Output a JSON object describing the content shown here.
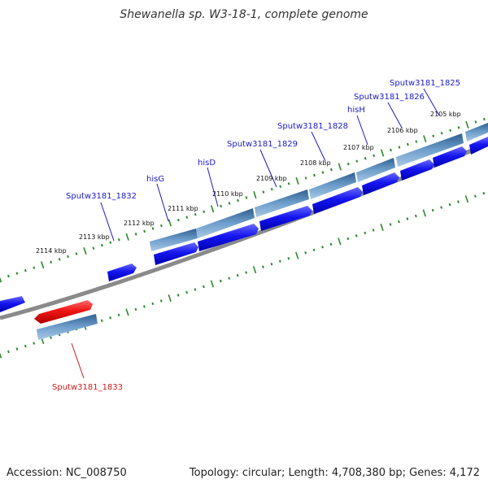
{
  "title": "Shewanella sp. W3-18-1, complete genome",
  "footer": {
    "accession": "Accession: NC_008750",
    "summary": "Topology: circular; Length: 4,708,380 bp; Genes: 4,172"
  },
  "colors": {
    "cds_forward": "#1a1ae6",
    "cds_highlight": "#e61a1a",
    "gene_bar": "#4f86b8",
    "backbone": "#8a8a8a",
    "tick": "#2a8a2a",
    "gene_label": "#1a1acc",
    "highlight_label": "#cc1a1a"
  },
  "scale_labels": [
    "2114 kbp",
    "2113 kbp",
    "2112 kbp",
    "2111 kbp",
    "2110 kbp",
    "2109 kbp",
    "2108 kbp",
    "2107 kbp",
    "2106 kbp",
    "2105 kbp"
  ],
  "gene_labels": [
    "Sputw3181_1832",
    "hisG",
    "hisD",
    "Sputw3181_1829",
    "Sputw3181_1828",
    "hisH",
    "Sputw3181_1826",
    "Sputw3181_1825"
  ],
  "highlight_label": "Sputw3181_1833"
}
